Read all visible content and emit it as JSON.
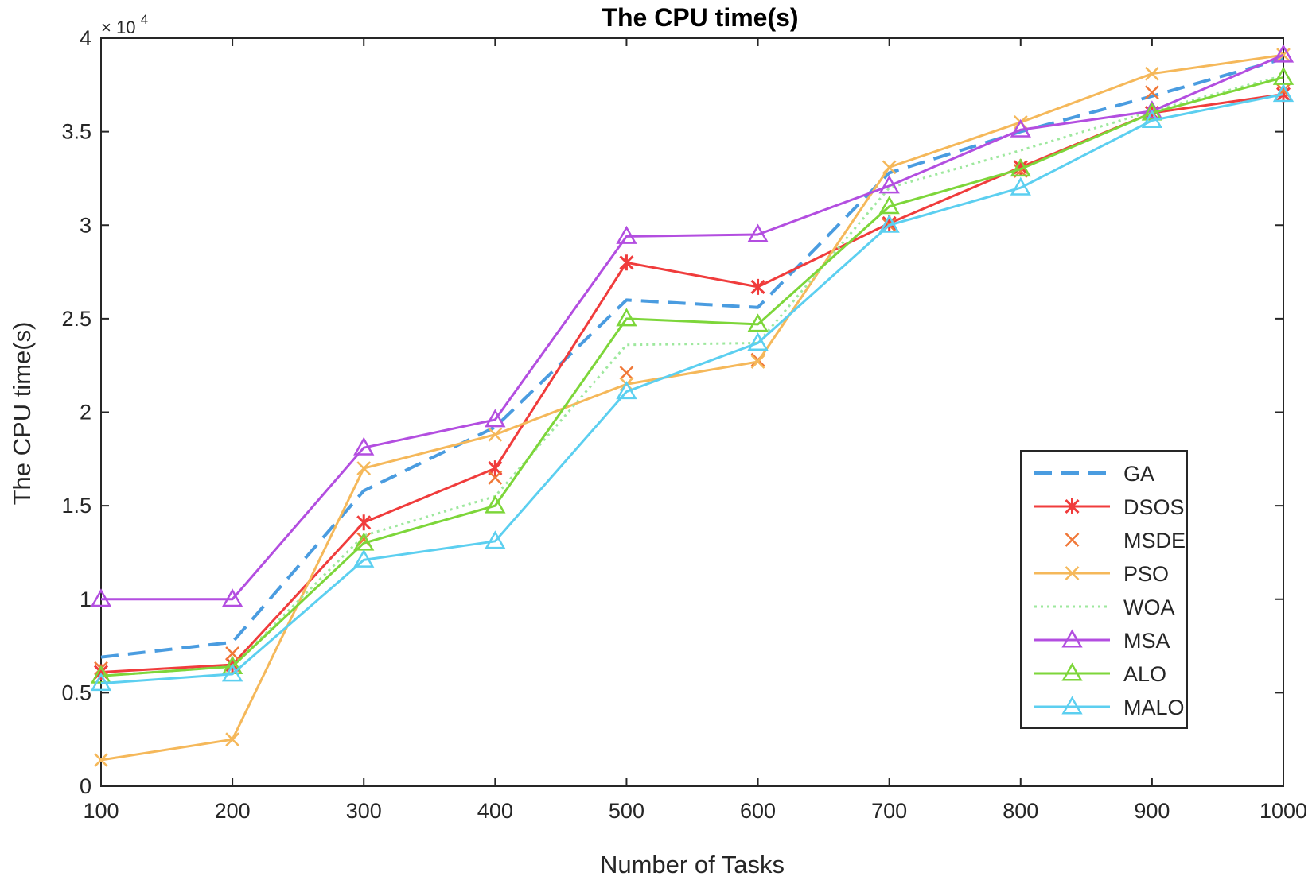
{
  "chart_data": {
    "type": "line",
    "title": "The CPU time(s)",
    "xlabel": "Number of Tasks",
    "ylabel": "The CPU time(s)",
    "y_exponent_label": "× 10",
    "y_exponent_power": "4",
    "x": [
      100,
      200,
      300,
      400,
      500,
      600,
      700,
      800,
      900,
      1000
    ],
    "xticks": [
      "100",
      "200",
      "300",
      "400",
      "500",
      "600",
      "700",
      "800",
      "900",
      "1000"
    ],
    "yticks": [
      {
        "value": 0,
        "label": "0"
      },
      {
        "value": 5000,
        "label": "0.5"
      },
      {
        "value": 10000,
        "label": "1"
      },
      {
        "value": 15000,
        "label": "1.5"
      },
      {
        "value": 20000,
        "label": "2"
      },
      {
        "value": 25000,
        "label": "2.5"
      },
      {
        "value": 30000,
        "label": "3"
      },
      {
        "value": 35000,
        "label": "3.5"
      },
      {
        "value": 40000,
        "label": "4"
      }
    ],
    "xlim": [
      100,
      1000
    ],
    "ylim": [
      0,
      40000
    ],
    "grid": false,
    "legend_position": "bottom-right",
    "series": [
      {
        "name": "GA",
        "color": "#4a9ce0",
        "dash": "dashed",
        "marker": "none",
        "values": [
          6900,
          7700,
          15800,
          19200,
          26000,
          25600,
          32800,
          35000,
          36900,
          38900
        ]
      },
      {
        "name": "DSOS",
        "color": "#f03c3c",
        "dash": "solid",
        "marker": "asterisk",
        "values": [
          6100,
          6500,
          14100,
          17000,
          28000,
          26700,
          30100,
          33100,
          36000,
          37000
        ]
      },
      {
        "name": "MSDE",
        "color": "#f07838",
        "dash": "none",
        "marker": "x",
        "values": [
          6300,
          7100,
          13200,
          16500,
          22100,
          22800,
          30000,
          32900,
          37100,
          37200
        ]
      },
      {
        "name": "PSO",
        "color": "#f5b85a",
        "dash": "solid",
        "marker": "x",
        "values": [
          1400,
          2500,
          17000,
          18800,
          21500,
          22700,
          33100,
          35500,
          38100,
          39100
        ]
      },
      {
        "name": "WOA",
        "color": "#9ee89e",
        "dash": "dotted",
        "marker": "none",
        "values": [
          5900,
          6400,
          13400,
          15500,
          23600,
          23700,
          32000,
          34000,
          36100,
          38000
        ]
      },
      {
        "name": "MSA",
        "color": "#b34ee0",
        "dash": "solid",
        "marker": "triangle",
        "values": [
          10000,
          10000,
          18100,
          19600,
          29400,
          29500,
          32100,
          35100,
          36100,
          39100
        ]
      },
      {
        "name": "ALO",
        "color": "#7dd63a",
        "dash": "solid",
        "marker": "triangle",
        "values": [
          5900,
          6400,
          13000,
          15000,
          25000,
          24700,
          31000,
          33000,
          36000,
          37900
        ]
      },
      {
        "name": "MALO",
        "color": "#5ccff0",
        "dash": "solid",
        "marker": "triangle",
        "values": [
          5500,
          6000,
          12100,
          13100,
          21100,
          23700,
          30000,
          32000,
          35600,
          37000
        ]
      }
    ]
  }
}
